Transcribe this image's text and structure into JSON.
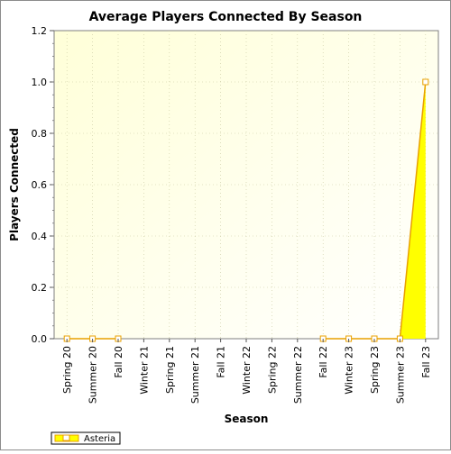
{
  "chart_data": {
    "type": "area",
    "title": "Average Players Connected By Season",
    "xlabel": "Season",
    "ylabel": "Players Connected",
    "categories": [
      "Spring 20",
      "Summer 20",
      "Fall 20",
      "Winter 21",
      "Spring 21",
      "Summer 21",
      "Fall 21",
      "Winter 22",
      "Spring 22",
      "Summer 22",
      "Fall 22",
      "Winter 23",
      "Spring 23",
      "Summer 23",
      "Fall 23"
    ],
    "series": [
      {
        "name": "Asteria",
        "values": [
          0,
          0,
          0,
          null,
          null,
          null,
          null,
          null,
          null,
          null,
          0,
          0,
          0,
          0,
          1.0
        ]
      }
    ],
    "ylim": [
      0,
      1.2
    ],
    "yticks": [
      "0.0",
      "0.2",
      "0.4",
      "0.6",
      "0.8",
      "1.0",
      "1.2"
    ],
    "grid": true,
    "legend_position": "bottom-left",
    "colors": {
      "fill": "#ffff00",
      "line": "#e8a000",
      "plot_bg_light": "#ffffff",
      "plot_bg_warm": "#ffffd8",
      "grid": "#c8c8a0"
    }
  }
}
